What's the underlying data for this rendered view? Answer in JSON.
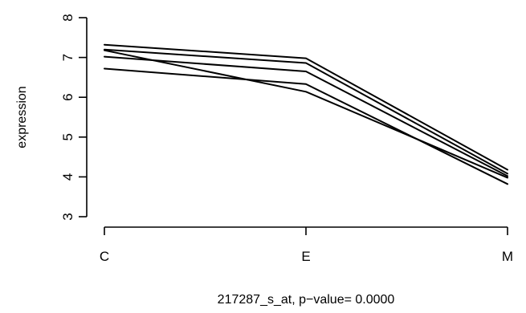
{
  "chart_data": {
    "type": "line",
    "title": "",
    "xlabel": "217287_s_at, p−value= 0.0000",
    "ylabel": "expression",
    "categories": [
      "C",
      "E",
      "M"
    ],
    "ylim": [
      3,
      8
    ],
    "yticks": [
      "3",
      "4",
      "5",
      "6",
      "7",
      "8"
    ],
    "grid": false,
    "legend": "none",
    "line_color": "#000000",
    "series": [
      {
        "values": [
          7.32,
          6.98,
          4.18
        ]
      },
      {
        "values": [
          7.2,
          6.86,
          4.08
        ]
      },
      {
        "values": [
          7.02,
          6.65,
          4.02
        ]
      },
      {
        "values": [
          7.18,
          6.14,
          3.98
        ]
      },
      {
        "values": [
          6.72,
          6.33,
          3.82
        ]
      }
    ]
  }
}
